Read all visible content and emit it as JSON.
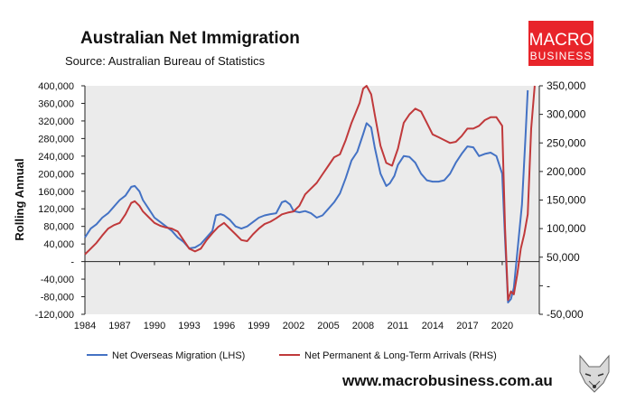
{
  "header": {
    "title": "Australian Net Immigration",
    "source": "Source: Australian Bureau of Statistics"
  },
  "brand": {
    "logo_line1": "MACRO",
    "logo_line2": "BUSINESS",
    "logo_color": "#e8242a",
    "website": "www.macrobusiness.com.au",
    "fox_icon": "fox-head-icon"
  },
  "chart_data": {
    "type": "line",
    "ylabel": "Rolling Annual",
    "x_ticks": [
      "1984",
      "1987",
      "1990",
      "1993",
      "1996",
      "1999",
      "2002",
      "2005",
      "2008",
      "2011",
      "2014",
      "2017",
      "2020"
    ],
    "xlim": [
      1984,
      2023.2
    ],
    "ylim_left": [
      -120000,
      400000
    ],
    "ylim_right": [
      -50000,
      350000
    ],
    "y_ticks_left": [
      "400,000",
      "360,000",
      "320,000",
      "280,000",
      "240,000",
      "200,000",
      "160,000",
      "120,000",
      "80,000",
      "40,000",
      "-",
      "-40,000",
      "-80,000",
      "-120,000"
    ],
    "y_ticks_right": [
      "350,000",
      "300,000",
      "250,000",
      "200,000",
      "150,000",
      "100,000",
      "50,000",
      "-",
      "-50,000"
    ],
    "grid": false,
    "legend_position": "bottom",
    "series": [
      {
        "name": "Net Overseas Migration (LHS)",
        "axis": "left",
        "color": "#4472c4",
        "x": [
          1984.0,
          1984.5,
          1985.0,
          1985.5,
          1986.0,
          1986.5,
          1987.0,
          1987.5,
          1988.0,
          1988.3,
          1988.7,
          1989.0,
          1989.5,
          1990.0,
          1990.5,
          1991.0,
          1991.5,
          1992.0,
          1992.5,
          1993.0,
          1993.5,
          1994.0,
          1994.5,
          1995.0,
          1995.3,
          1995.7,
          1996.0,
          1996.5,
          1997.0,
          1997.5,
          1998.0,
          1998.5,
          1999.0,
          1999.5,
          2000.0,
          2000.5,
          2001.0,
          2001.3,
          2001.7,
          2002.0,
          2002.5,
          2003.0,
          2003.5,
          2004.0,
          2004.5,
          2005.0,
          2005.5,
          2006.0,
          2006.5,
          2007.0,
          2007.5,
          2008.0,
          2008.3,
          2008.7,
          2009.0,
          2009.5,
          2010.0,
          2010.3,
          2010.7,
          2011.0,
          2011.5,
          2012.0,
          2012.5,
          2013.0,
          2013.5,
          2014.0,
          2014.5,
          2015.0,
          2015.5,
          2016.0,
          2016.5,
          2017.0,
          2017.5,
          2018.0,
          2018.5,
          2019.0,
          2019.5,
          2020.0,
          2020.25,
          2020.5,
          2020.75,
          2021.0,
          2021.3,
          2021.7,
          2022.0,
          2022.2
        ],
        "y": [
          55000,
          75000,
          85000,
          100000,
          110000,
          125000,
          140000,
          150000,
          170000,
          172000,
          160000,
          140000,
          120000,
          100000,
          90000,
          80000,
          70000,
          55000,
          45000,
          30000,
          32000,
          40000,
          55000,
          70000,
          105000,
          108000,
          105000,
          95000,
          80000,
          75000,
          80000,
          90000,
          100000,
          105000,
          108000,
          110000,
          135000,
          138000,
          130000,
          115000,
          112000,
          115000,
          110000,
          100000,
          105000,
          120000,
          135000,
          155000,
          190000,
          230000,
          250000,
          290000,
          315000,
          305000,
          260000,
          200000,
          172000,
          178000,
          195000,
          220000,
          240000,
          238000,
          225000,
          200000,
          185000,
          182000,
          182000,
          185000,
          200000,
          225000,
          245000,
          262000,
          260000,
          240000,
          245000,
          248000,
          240000,
          200000,
          50000,
          -93000,
          -85000,
          -60000,
          20000,
          130000,
          280000,
          390000
        ]
      },
      {
        "name": "Net Permanent & Long-Term Arrivals (RHS)",
        "axis": "right",
        "color": "#c0393b",
        "x": [
          1984.0,
          1984.5,
          1985.0,
          1985.5,
          1986.0,
          1986.5,
          1987.0,
          1987.5,
          1988.0,
          1988.3,
          1988.7,
          1989.0,
          1989.5,
          1990.0,
          1990.5,
          1991.0,
          1991.5,
          1992.0,
          1992.5,
          1993.0,
          1993.5,
          1994.0,
          1994.5,
          1995.0,
          1995.5,
          1996.0,
          1996.5,
          1997.0,
          1997.5,
          1998.0,
          1998.5,
          1999.0,
          1999.5,
          2000.0,
          2000.5,
          2001.0,
          2001.5,
          2002.0,
          2002.5,
          2003.0,
          2003.5,
          2004.0,
          2004.5,
          2005.0,
          2005.5,
          2006.0,
          2006.5,
          2007.0,
          2007.3,
          2007.7,
          2008.0,
          2008.3,
          2008.7,
          2009.0,
          2009.5,
          2010.0,
          2010.5,
          2011.0,
          2011.5,
          2012.0,
          2012.5,
          2013.0,
          2013.5,
          2014.0,
          2014.5,
          2015.0,
          2015.5,
          2016.0,
          2016.5,
          2017.0,
          2017.5,
          2018.0,
          2018.5,
          2019.0,
          2019.5,
          2020.0,
          2020.25,
          2020.5,
          2020.75,
          2021.0,
          2021.3,
          2021.6,
          2021.9,
          2022.2,
          2022.5,
          2022.8
        ],
        "y": [
          55000,
          65000,
          75000,
          88000,
          100000,
          106000,
          110000,
          125000,
          145000,
          148000,
          140000,
          130000,
          120000,
          110000,
          105000,
          102000,
          100000,
          95000,
          80000,
          65000,
          60000,
          65000,
          80000,
          92000,
          103000,
          110000,
          100000,
          90000,
          80000,
          78000,
          90000,
          100000,
          108000,
          112000,
          118000,
          125000,
          128000,
          130000,
          140000,
          160000,
          170000,
          180000,
          195000,
          210000,
          225000,
          230000,
          255000,
          285000,
          300000,
          320000,
          345000,
          350000,
          335000,
          300000,
          245000,
          215000,
          210000,
          240000,
          285000,
          300000,
          310000,
          305000,
          285000,
          265000,
          260000,
          255000,
          250000,
          252000,
          262000,
          275000,
          275000,
          280000,
          290000,
          295000,
          295000,
          280000,
          100000,
          -25000,
          -10000,
          -15000,
          20000,
          65000,
          90000,
          125000,
          275000,
          350000
        ]
      }
    ]
  }
}
